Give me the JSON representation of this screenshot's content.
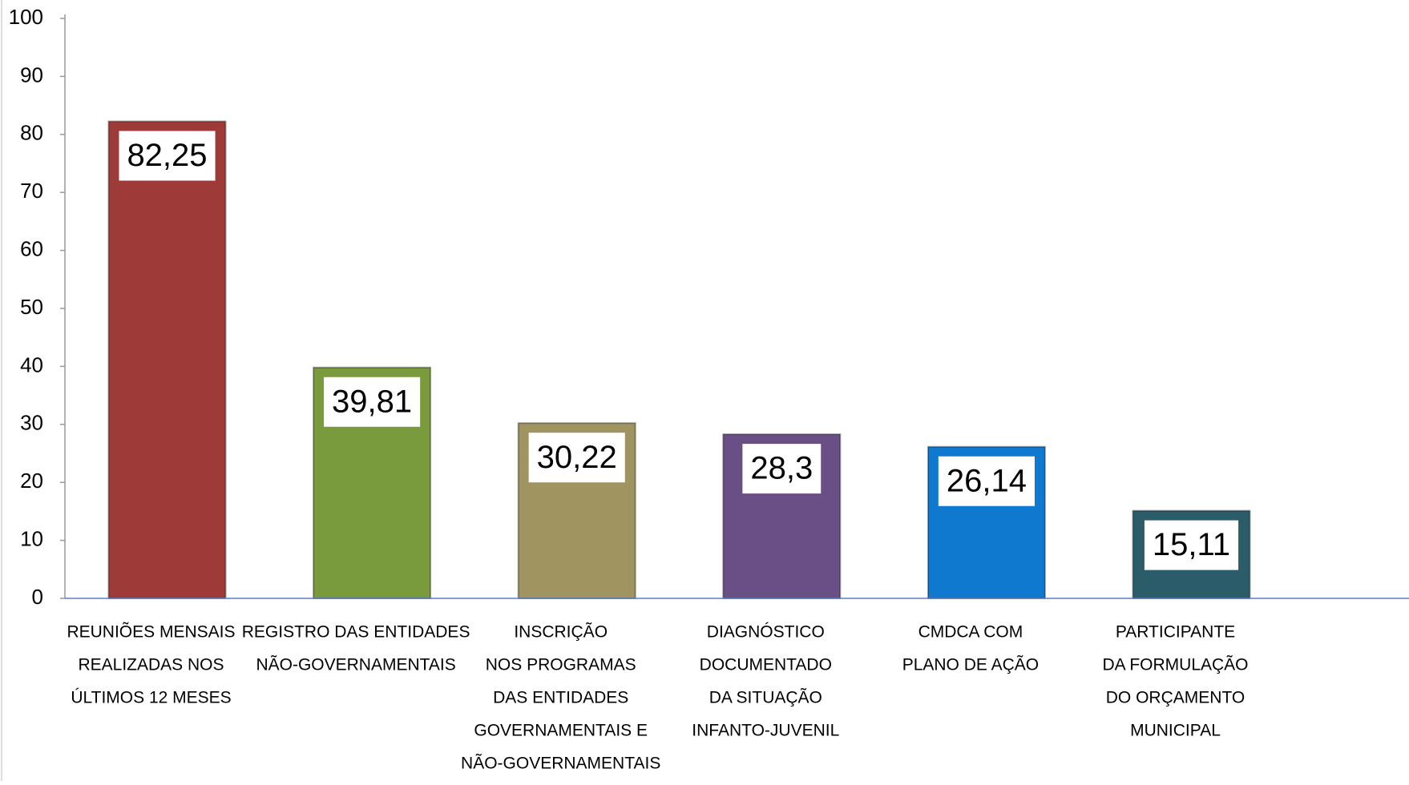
{
  "chart_data": {
    "type": "bar",
    "categories": [
      [
        "REUNIÕES MENSAIS",
        "REALIZADAS NOS",
        "ÚLTIMOS  12 MESES"
      ],
      [
        "REGISTRO  DAS ENTIDADES",
        "NÃO-GOVERNAMENTAIS"
      ],
      [
        "INSCRIÇÃO",
        "NOS PROGRAMAS",
        "DAS  ENTIDADES",
        "GOVERNAMENTAIS  E",
        "NÃO-GOVERNAMENTAIS"
      ],
      [
        "DIAGNÓSTICO",
        "DOCUMENTADO",
        "DA SITUAÇÃO",
        "INFANTO-JUVENIL"
      ],
      [
        "CMDCA COM",
        "PLANO DE AÇÃO"
      ],
      [
        "PARTICIPANTE",
        "DA FORMULAÇÃO",
        "DO ORÇAMENTO",
        "MUNICIPAL"
      ]
    ],
    "values": [
      82.25,
      39.81,
      30.22,
      28.3,
      26.14,
      15.11
    ],
    "value_labels": [
      "82,25",
      "39,81",
      "30,22",
      "28,3",
      "26,14",
      "15,11"
    ],
    "colors": [
      "#9e3a38",
      "#7a9a3e",
      "#a09460",
      "#6a4f87",
      "#0f79d0",
      "#2a5c6a"
    ],
    "ylim": [
      0,
      100
    ],
    "yticks": [
      0,
      10,
      20,
      30,
      40,
      50,
      60,
      70,
      80,
      90,
      100
    ],
    "grid": false
  }
}
